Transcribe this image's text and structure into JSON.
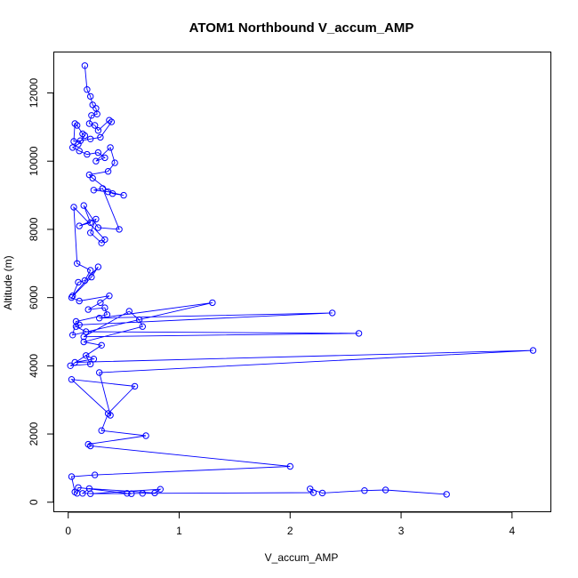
{
  "chart_data": {
    "type": "line",
    "title": "ATOM1 Northbound V_accum_AMP",
    "xlabel": "V_accum_AMP",
    "ylabel": "Altitude (m)",
    "xlim": [
      -0.13,
      4.35
    ],
    "ylim": [
      -280,
      13200
    ],
    "xticks": [
      0,
      1,
      2,
      3,
      4
    ],
    "xtick_labels": [
      "0",
      "1",
      "2",
      "3",
      "4"
    ],
    "yticks": [
      0,
      2000,
      4000,
      6000,
      8000,
      10000,
      12000
    ],
    "ytick_labels": [
      "0",
      "2000",
      "4000",
      "6000",
      "8000",
      "10000",
      "12000"
    ],
    "grid": false,
    "line_color": "#0000ff",
    "series": [
      {
        "x": [
          0.15,
          0.17,
          0.2,
          0.22,
          0.25,
          0.26,
          0.21,
          0.19,
          0.24,
          0.27,
          0.37,
          0.39,
          0.29,
          0.2,
          0.11,
          0.05,
          0.06,
          0.08,
          0.13,
          0.15,
          0.09,
          0.04,
          0.1,
          0.17,
          0.27,
          0.33,
          0.25,
          0.38,
          0.42,
          0.36,
          0.19,
          0.22,
          0.4,
          0.5,
          0.36,
          0.23,
          0.31,
          0.46,
          0.27,
          0.14,
          0.2,
          0.1,
          0.25,
          0.2,
          0.3,
          0.33,
          0.05,
          0.08,
          0.2,
          0.15,
          0.09,
          0.04,
          0.27,
          0.21,
          0.03,
          0.1,
          0.37,
          0.29,
          0.18,
          0.33,
          0.35,
          0.07,
          0.04,
          1.3,
          0.28,
          2.38,
          0.1,
          0.07,
          0.16,
          2.62,
          0.14,
          0.55,
          0.64,
          0.67,
          0.14,
          0.3,
          0.02,
          0.2,
          0.16,
          0.23,
          0.06,
          4.19,
          0.28,
          0.38,
          0.03,
          0.6,
          0.36,
          0.3,
          0.7,
          0.18,
          0.2,
          2.0,
          0.24,
          0.03,
          0.06,
          0.08,
          0.09,
          0.53,
          0.57,
          0.13,
          0.19,
          0.78,
          0.83,
          0.2,
          0.67,
          2.21,
          2.18,
          2.29,
          2.67,
          2.86,
          3.41
        ],
        "y": [
          12800,
          12100,
          11900,
          11650,
          11550,
          11380,
          11340,
          11100,
          11050,
          10900,
          11200,
          11150,
          10700,
          10650,
          10600,
          10580,
          11100,
          11050,
          10800,
          10750,
          10500,
          10400,
          10300,
          10200,
          10250,
          10100,
          10000,
          10400,
          9950,
          9700,
          9600,
          9500,
          9050,
          9000,
          9100,
          9150,
          9200,
          8000,
          8050,
          8700,
          8200,
          8100,
          8300,
          7900,
          7600,
          7700,
          8650,
          7000,
          6800,
          6500,
          6450,
          6050,
          6900,
          6600,
          6000,
          5900,
          6050,
          5850,
          5650,
          5700,
          5500,
          5300,
          4900,
          5850,
          5400,
          5550,
          5200,
          5150,
          5000,
          4950,
          4850,
          5600,
          5350,
          5150,
          4700,
          4600,
          4000,
          4050,
          4300,
          4200,
          4100,
          4450,
          3800,
          2550,
          3600,
          3400,
          2600,
          2100,
          1950,
          1700,
          1650,
          1050,
          800,
          750,
          300,
          260,
          430,
          260,
          250,
          260,
          400,
          270,
          380,
          250,
          260,
          280,
          390,
          270,
          340,
          360,
          230
        ]
      }
    ]
  }
}
